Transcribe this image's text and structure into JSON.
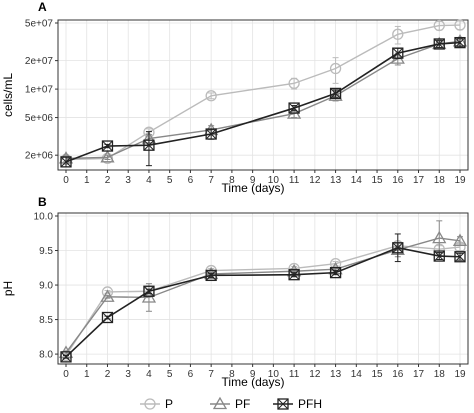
{
  "chart_data": [
    {
      "type": "line",
      "panel_label": "A",
      "xlabel": "Time (days)",
      "ylabel": "cells/mL",
      "y_scale": "log",
      "ylim": [
        1500000,
        50000000
      ],
      "xlim": [
        0,
        19
      ],
      "x_ticks": [
        0,
        1,
        2,
        3,
        4,
        5,
        6,
        7,
        8,
        9,
        10,
        11,
        12,
        13,
        14,
        15,
        16,
        17,
        18,
        19
      ],
      "y_ticks": [
        2000000,
        5000000,
        10000000,
        20000000,
        50000000
      ],
      "y_tick_labels": [
        "2e+06",
        "5e+06",
        "1e+07",
        "2e+07",
        "5e+07"
      ],
      "grid": true,
      "series": [
        {
          "name": "P",
          "color": "#bbbbbb",
          "marker": "circle",
          "x": [
            0,
            2,
            4,
            7,
            11,
            13,
            16,
            18,
            19
          ],
          "y": [
            1800000,
            1850000,
            3500000,
            8500000,
            11500000,
            16500000,
            38000000,
            47000000,
            47500000
          ],
          "err": [
            200000,
            150000,
            300000,
            600000,
            1500000,
            5000000,
            8000000,
            5000000,
            5000000
          ]
        },
        {
          "name": "PF",
          "color": "#888888",
          "marker": "triangle",
          "x": [
            0,
            2,
            4,
            7,
            11,
            13,
            16,
            18,
            19
          ],
          "y": [
            1850000,
            1900000,
            3000000,
            3700000,
            5500000,
            8500000,
            21000000,
            30000000,
            32000000
          ],
          "err": [
            150000,
            100000,
            300000,
            400000,
            500000,
            1000000,
            3000000,
            3000000,
            3000000
          ]
        },
        {
          "name": "PFH",
          "color": "#222222",
          "marker": "square",
          "x": [
            0,
            2,
            4,
            7,
            11,
            13,
            16,
            18,
            19
          ],
          "y": [
            1700000,
            2500000,
            2550000,
            3350000,
            6300000,
            9000000,
            24000000,
            30000000,
            31000000
          ],
          "err": [
            200000,
            100000,
            1000000,
            400000,
            400000,
            800000,
            3000000,
            2500000,
            3000000
          ]
        }
      ]
    },
    {
      "type": "line",
      "panel_label": "B",
      "xlabel": "Time (days)",
      "ylabel": "pH",
      "ylim": [
        7.9,
        10.0
      ],
      "xlim": [
        0,
        19
      ],
      "x_ticks": [
        0,
        1,
        2,
        3,
        4,
        5,
        6,
        7,
        8,
        9,
        10,
        11,
        12,
        13,
        14,
        15,
        16,
        17,
        18,
        19
      ],
      "y_ticks": [
        8.0,
        8.5,
        9.0,
        9.5,
        10.0
      ],
      "y_tick_labels": [
        "8.0",
        "8.5",
        "9.0",
        "9.5",
        "10.0"
      ],
      "grid": true,
      "series": [
        {
          "name": "P",
          "color": "#bbbbbb",
          "marker": "circle",
          "x": [
            0,
            2,
            4,
            7,
            11,
            13,
            16,
            18,
            19
          ],
          "y": [
            7.98,
            8.9,
            8.91,
            9.21,
            9.24,
            9.31,
            9.57,
            9.52,
            9.55
          ],
          "err": [
            0.02,
            0.02,
            0.03,
            0.03,
            0.03,
            0.03,
            0.03,
            0.05,
            0.05
          ]
        },
        {
          "name": "PF",
          "color": "#888888",
          "marker": "triangle",
          "x": [
            0,
            2,
            4,
            7,
            11,
            13,
            16,
            18,
            19
          ],
          "y": [
            8.02,
            8.83,
            8.82,
            9.16,
            9.2,
            9.23,
            9.51,
            9.68,
            9.64
          ],
          "err": [
            0.02,
            0.02,
            0.2,
            0.03,
            0.03,
            0.03,
            0.1,
            0.25,
            0.06
          ]
        },
        {
          "name": "PFH",
          "color": "#222222",
          "marker": "square",
          "x": [
            0,
            2,
            4,
            7,
            11,
            13,
            16,
            18,
            19
          ],
          "y": [
            7.96,
            8.53,
            8.91,
            9.14,
            9.15,
            9.18,
            9.54,
            9.42,
            9.41
          ],
          "err": [
            0.02,
            0.02,
            0.03,
            0.03,
            0.03,
            0.03,
            0.2,
            0.05,
            0.05
          ]
        }
      ]
    }
  ],
  "legend": {
    "placement": "bottom",
    "items": [
      {
        "label": "P",
        "color": "#bbbbbb",
        "marker": "circle"
      },
      {
        "label": "PF",
        "color": "#888888",
        "marker": "triangle"
      },
      {
        "label": "PFH",
        "color": "#222222",
        "marker": "square"
      }
    ]
  }
}
